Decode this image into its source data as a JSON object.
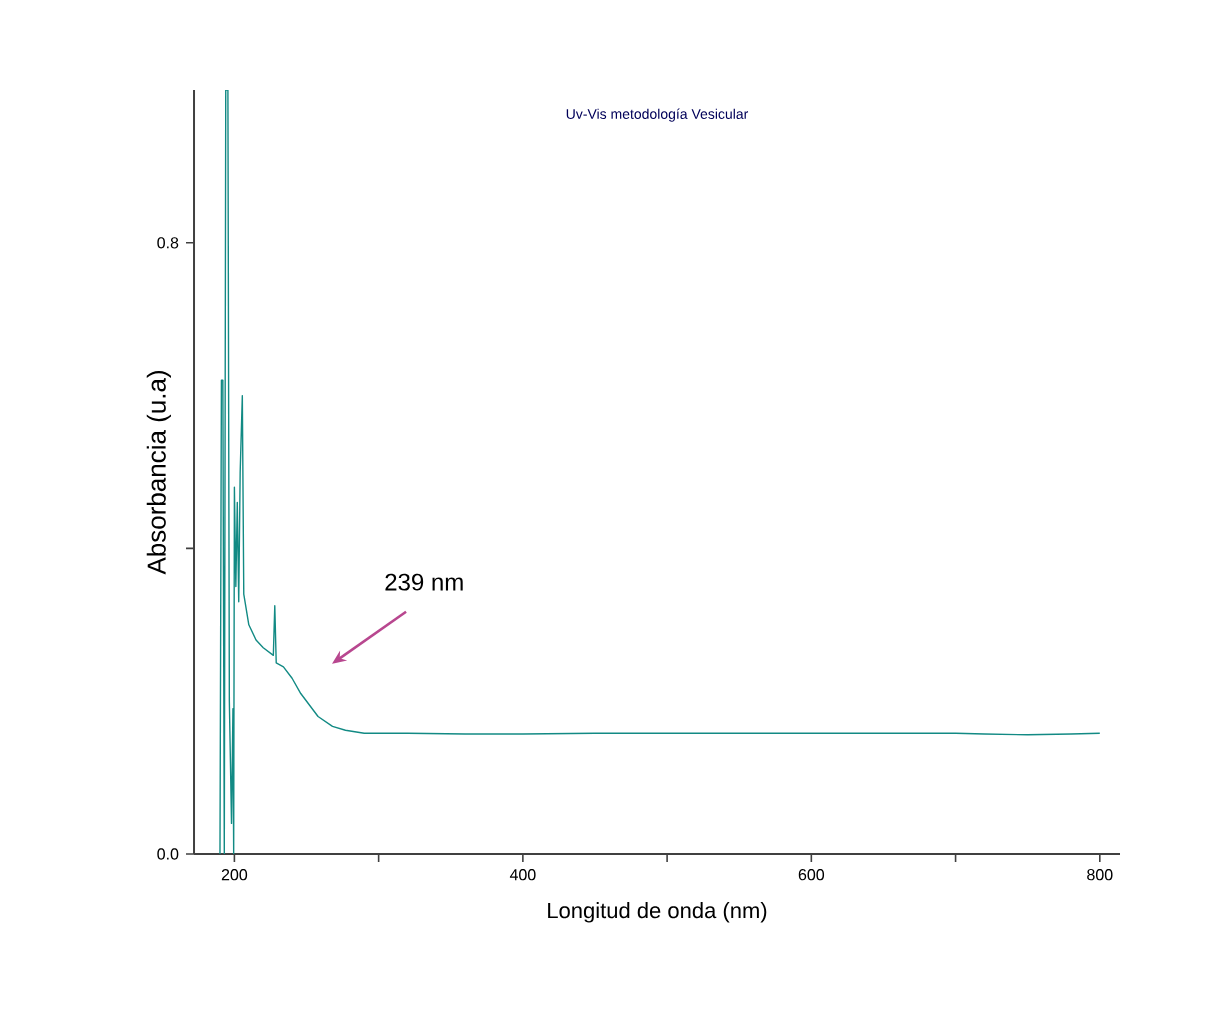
{
  "chart_data": {
    "type": "line",
    "title": "Uv-Vis metodología Vesicular",
    "xlabel": "Longitud de onda (nm)",
    "ylabel": "Absorbancia (u.a)",
    "annotations": [
      "239 nm"
    ],
    "xlim": [
      172,
      814
    ],
    "ylim": [
      0,
      1.0
    ],
    "xticks": [
      200,
      {
        "value": 300,
        "label": null
      },
      400,
      {
        "value": 500,
        "label": null
      },
      600,
      {
        "value": 700,
        "label": null
      },
      800
    ],
    "yticks": [
      {
        "value": 0,
        "label": "0.0"
      },
      {
        "value": 0.4,
        "label": null
      },
      0.8
    ],
    "marker": "none",
    "line_style": "solid",
    "series": [
      {
        "color": "#128a84",
        "x": [
          190,
          191,
          192,
          193,
          194,
          195.5,
          196.5,
          198,
          199,
          199.5,
          200,
          201,
          202,
          203,
          204,
          205.5,
          206.5,
          210,
          215,
          220,
          227,
          228,
          229,
          234,
          240,
          246,
          252,
          258,
          268,
          277,
          290,
          320,
          360,
          400,
          450,
          500,
          550,
          600,
          650,
          700,
          720,
          750,
          780,
          800
        ],
        "values": [
          0.0,
          0.62,
          0.62,
          0.0,
          1.0,
          1.0,
          0.2,
          0.04,
          0.19,
          0.0,
          0.48,
          0.35,
          0.46,
          0.33,
          0.5,
          0.6,
          0.34,
          0.3,
          0.28,
          0.27,
          0.26,
          0.325,
          0.25,
          0.245,
          0.23,
          0.21,
          0.195,
          0.18,
          0.167,
          0.162,
          0.158,
          0.158,
          0.157,
          0.157,
          0.158,
          0.158,
          0.158,
          0.158,
          0.158,
          0.158,
          0.157,
          0.156,
          0.157,
          0.158
        ]
      }
    ]
  }
}
